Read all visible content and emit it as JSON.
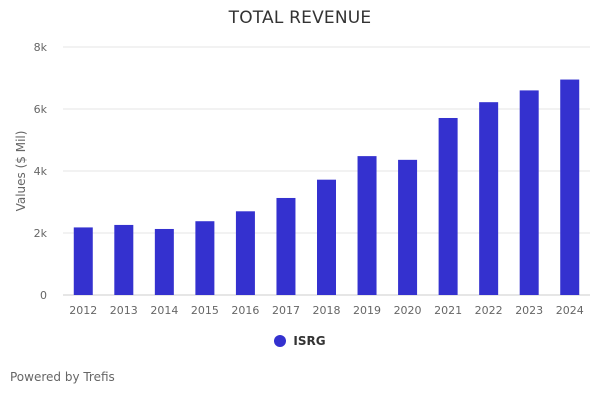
{
  "chart_data": {
    "type": "bar",
    "title": "TOTAL REVENUE",
    "ylabel": "Values ($ Mil)",
    "xlabel": "",
    "categories": [
      "2012",
      "2013",
      "2014",
      "2015",
      "2016",
      "2017",
      "2018",
      "2019",
      "2020",
      "2021",
      "2022",
      "2023",
      "2024"
    ],
    "series": [
      {
        "name": "ISRG",
        "color": "#3431cf",
        "values": [
          2180,
          2260,
          2130,
          2380,
          2700,
          3130,
          3720,
          4480,
          4360,
          5710,
          6220,
          6600,
          6950
        ]
      }
    ],
    "ylim": [
      0,
      8000
    ],
    "yticks": [
      0,
      2000,
      4000,
      6000,
      8000
    ],
    "ytick_labels": [
      "0",
      "2k",
      "4k",
      "6k",
      "8k"
    ],
    "grid": true,
    "legend_position": "bottom-center"
  },
  "footer": {
    "credit": "Powered by Trefis"
  }
}
